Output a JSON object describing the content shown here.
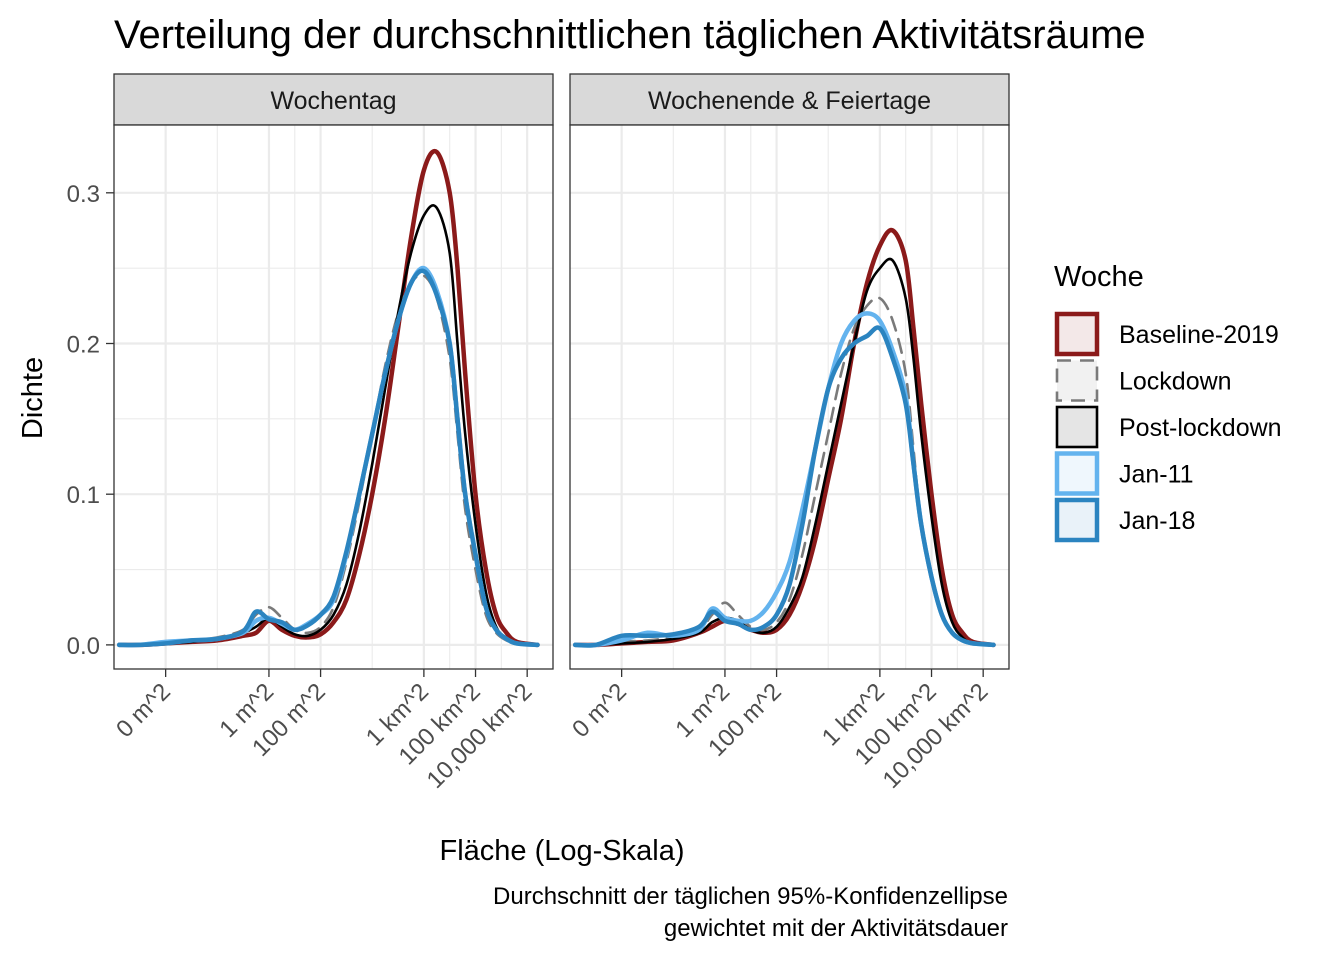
{
  "chart_data": {
    "type": "line",
    "title": "Verteilung der durchschnittlichen täglichen Aktivitätsräume",
    "xlabel": "Fläche (Log-Skala)",
    "ylabel": "Dichte",
    "caption": [
      "Durchschnitt der täglichen 95%-Konfidenzellipse",
      "gewichtet mit der Aktivitätsdauer"
    ],
    "x_scale": "log10",
    "x_unit": "m^2",
    "x_ticks": [
      {
        "value": 0.0001,
        "label": "0 m^2"
      },
      {
        "value": 1,
        "label": "1 m^2"
      },
      {
        "value": 100,
        "label": "100 m^2"
      },
      {
        "value": 1000000,
        "label": "1 km^2"
      },
      {
        "value": 100000000,
        "label": "100 km^2"
      },
      {
        "value": 10000000000,
        "label": "10,000 km^2"
      }
    ],
    "xlim": [
      1e-06,
      100000000000
    ],
    "ylim": [
      -0.016,
      0.345
    ],
    "y_ticks": [
      {
        "value": 0.0,
        "label": "0.0"
      },
      {
        "value": 0.1,
        "label": "0.1"
      },
      {
        "value": 0.2,
        "label": "0.2"
      },
      {
        "value": 0.3,
        "label": "0.3"
      }
    ],
    "grid": true,
    "legend": {
      "title": "Woche",
      "position": "right",
      "entries": [
        "Baseline-2019",
        "Lockdown",
        "Post-lockdown",
        "Jan-11",
        "Jan-18"
      ]
    },
    "series_styles": [
      {
        "name": "Baseline-2019",
        "color": "#8b1a1a",
        "dash": "solid",
        "width": "thick"
      },
      {
        "name": "Lockdown",
        "color": "#7a7a7a",
        "dash": "dashed",
        "width": "medium"
      },
      {
        "name": "Post-lockdown",
        "color": "#000000",
        "dash": "solid",
        "width": "thin"
      },
      {
        "name": "Jan-11",
        "color": "#63b3ee",
        "dash": "solid",
        "width": "thick"
      },
      {
        "name": "Jan-18",
        "color": "#2b84c0",
        "dash": "solid",
        "width": "thick"
      }
    ],
    "facets": [
      {
        "label": "Wochentag",
        "series": [
          {
            "name": "Baseline-2019",
            "x_log10": [
              -5.8,
              -5,
              -4,
              -3,
              -2,
              -1,
              -0.5,
              0,
              0.5,
              1,
              1.5,
              2,
              2.5,
              3,
              3.5,
              4,
              4.5,
              5,
              5.5,
              6,
              6.5,
              7,
              7.3,
              7.6,
              8,
              8.4,
              8.8,
              9.2,
              9.6,
              10.4
            ],
            "y": [
              0,
              0,
              0.001,
              0.002,
              0.003,
              0.006,
              0.008,
              0.016,
              0.01,
              0.006,
              0.005,
              0.007,
              0.015,
              0.03,
              0.06,
              0.1,
              0.15,
              0.21,
              0.27,
              0.315,
              0.327,
              0.3,
              0.25,
              0.18,
              0.1,
              0.05,
              0.02,
              0.008,
              0.002,
              0
            ]
          },
          {
            "name": "Lockdown",
            "x_log10": [
              -5.8,
              -5,
              -4,
              -3,
              -2,
              -1,
              -0.5,
              0,
              0.5,
              1,
              1.5,
              2,
              2.5,
              3,
              3.5,
              4,
              4.5,
              5,
              5.5,
              6,
              6.5,
              7,
              7.3,
              7.6,
              8,
              8.4,
              8.8,
              9.2,
              9.6,
              10.4
            ],
            "y": [
              0,
              0,
              0.001,
              0.003,
              0.005,
              0.01,
              0.02,
              0.025,
              0.018,
              0.01,
              0.008,
              0.012,
              0.025,
              0.055,
              0.095,
              0.14,
              0.185,
              0.22,
              0.24,
              0.245,
              0.23,
              0.19,
              0.14,
              0.09,
              0.05,
              0.02,
              0.008,
              0.003,
              0.001,
              0
            ]
          },
          {
            "name": "Post-lockdown",
            "x_log10": [
              -5.8,
              -5,
              -4,
              -3,
              -2,
              -1,
              -0.5,
              0,
              0.5,
              1,
              1.5,
              2,
              2.5,
              3,
              3.5,
              4,
              4.5,
              5,
              5.5,
              6,
              6.5,
              7,
              7.3,
              7.6,
              8,
              8.4,
              8.8,
              9.2,
              9.6,
              10.4
            ],
            "y": [
              0,
              0,
              0.001,
              0.002,
              0.004,
              0.008,
              0.012,
              0.018,
              0.012,
              0.007,
              0.006,
              0.01,
              0.02,
              0.04,
              0.075,
              0.12,
              0.17,
              0.22,
              0.26,
              0.285,
              0.29,
              0.26,
              0.2,
              0.14,
              0.08,
              0.035,
              0.012,
              0.004,
              0.001,
              0
            ]
          },
          {
            "name": "Jan-11",
            "x_log10": [
              -5.8,
              -5,
              -4,
              -3,
              -2,
              -1,
              -0.5,
              0,
              0.5,
              1,
              1.5,
              2,
              2.5,
              3,
              3.5,
              4,
              4.5,
              5,
              5.5,
              6,
              6.5,
              7,
              7.3,
              7.6,
              8,
              8.4,
              8.8,
              9.2,
              9.6,
              10.4
            ],
            "y": [
              0,
              0,
              0.002,
              0.003,
              0.004,
              0.008,
              0.016,
              0.018,
              0.014,
              0.01,
              0.014,
              0.02,
              0.03,
              0.06,
              0.1,
              0.14,
              0.18,
              0.215,
              0.24,
              0.25,
              0.235,
              0.2,
              0.15,
              0.1,
              0.06,
              0.025,
              0.01,
              0.004,
              0.001,
              0
            ]
          },
          {
            "name": "Jan-18",
            "x_log10": [
              -5.8,
              -5,
              -4,
              -3,
              -2,
              -1,
              -0.5,
              0,
              0.5,
              1,
              1.5,
              2,
              2.5,
              3,
              3.5,
              4,
              4.5,
              5,
              5.5,
              6,
              6.5,
              7,
              7.3,
              7.6,
              8,
              8.4,
              8.8,
              9.2,
              9.6,
              10.4
            ],
            "y": [
              0,
              0,
              0.001,
              0.003,
              0.004,
              0.009,
              0.022,
              0.017,
              0.015,
              0.01,
              0.013,
              0.02,
              0.032,
              0.062,
              0.1,
              0.14,
              0.18,
              0.215,
              0.24,
              0.248,
              0.232,
              0.2,
              0.15,
              0.1,
              0.06,
              0.025,
              0.01,
              0.004,
              0.001,
              0
            ]
          }
        ]
      },
      {
        "label": "Wochenende & Feiertage",
        "series": [
          {
            "name": "Baseline-2019",
            "x_log10": [
              -5.8,
              -5,
              -4,
              -3,
              -2,
              -1,
              -0.5,
              0,
              0.5,
              1,
              1.5,
              2,
              2.5,
              3,
              3.5,
              4,
              4.5,
              5,
              5.5,
              6,
              6.5,
              7,
              7.3,
              7.6,
              8,
              8.4,
              8.8,
              9.2,
              9.6,
              10.4
            ],
            "y": [
              0,
              0,
              0.001,
              0.002,
              0.003,
              0.008,
              0.012,
              0.016,
              0.014,
              0.01,
              0.008,
              0.01,
              0.02,
              0.04,
              0.07,
              0.11,
              0.15,
              0.2,
              0.24,
              0.265,
              0.275,
              0.255,
              0.21,
              0.16,
              0.1,
              0.05,
              0.02,
              0.008,
              0.002,
              0
            ]
          },
          {
            "name": "Lockdown",
            "x_log10": [
              -5.8,
              -5,
              -4,
              -3,
              -2,
              -1,
              -0.5,
              0,
              0.5,
              1,
              1.5,
              2,
              2.5,
              3,
              3.5,
              4,
              4.5,
              5,
              5.5,
              6,
              6.5,
              7,
              7.3,
              7.6,
              8,
              8.4,
              8.8,
              9.2,
              9.6,
              10.4
            ],
            "y": [
              0,
              0,
              0.002,
              0.003,
              0.005,
              0.01,
              0.02,
              0.028,
              0.02,
              0.012,
              0.01,
              0.015,
              0.03,
              0.06,
              0.1,
              0.14,
              0.18,
              0.21,
              0.225,
              0.23,
              0.215,
              0.18,
              0.13,
              0.08,
              0.045,
              0.02,
              0.008,
              0.003,
              0.001,
              0
            ]
          },
          {
            "name": "Post-lockdown",
            "x_log10": [
              -5.8,
              -5,
              -4,
              -3,
              -2,
              -1,
              -0.5,
              0,
              0.5,
              1,
              1.5,
              2,
              2.5,
              3,
              3.5,
              4,
              4.5,
              5,
              5.5,
              6,
              6.5,
              7,
              7.3,
              7.6,
              8,
              8.4,
              8.8,
              9.2,
              9.6,
              10.4
            ],
            "y": [
              0,
              0,
              0.001,
              0.002,
              0.004,
              0.008,
              0.015,
              0.018,
              0.016,
              0.01,
              0.008,
              0.012,
              0.025,
              0.045,
              0.08,
              0.12,
              0.16,
              0.2,
              0.235,
              0.25,
              0.255,
              0.23,
              0.19,
              0.14,
              0.085,
              0.04,
              0.015,
              0.005,
              0.001,
              0
            ]
          },
          {
            "name": "Jan-11",
            "x_log10": [
              -5.8,
              -5,
              -4,
              -3,
              -2,
              -1,
              -0.5,
              0,
              0.5,
              1,
              1.5,
              2,
              2.5,
              3,
              3.5,
              4,
              4.5,
              5,
              5.5,
              6,
              6.5,
              7,
              7.3,
              7.6,
              8,
              8.4,
              8.8,
              9.2,
              9.6,
              10.4
            ],
            "y": [
              0,
              0,
              0.003,
              0.008,
              0.006,
              0.01,
              0.024,
              0.018,
              0.016,
              0.016,
              0.022,
              0.035,
              0.055,
              0.09,
              0.13,
              0.17,
              0.2,
              0.215,
              0.22,
              0.215,
              0.195,
              0.165,
              0.12,
              0.08,
              0.045,
              0.02,
              0.008,
              0.003,
              0.001,
              0
            ]
          },
          {
            "name": "Jan-18",
            "x_log10": [
              -5.8,
              -5,
              -4,
              -3,
              -2,
              -1,
              -0.5,
              0,
              0.5,
              1,
              1.5,
              2,
              2.5,
              3,
              3.5,
              4,
              4.5,
              5,
              5.5,
              6,
              6.5,
              7,
              7.3,
              7.6,
              8,
              8.4,
              8.8,
              9.2,
              9.6,
              10.4
            ],
            "y": [
              0,
              0,
              0.006,
              0.006,
              0.007,
              0.012,
              0.022,
              0.016,
              0.014,
              0.01,
              0.012,
              0.02,
              0.04,
              0.08,
              0.13,
              0.17,
              0.19,
              0.2,
              0.205,
              0.21,
              0.19,
              0.16,
              0.12,
              0.08,
              0.045,
              0.02,
              0.008,
              0.003,
              0.001,
              0
            ]
          }
        ]
      }
    ]
  }
}
